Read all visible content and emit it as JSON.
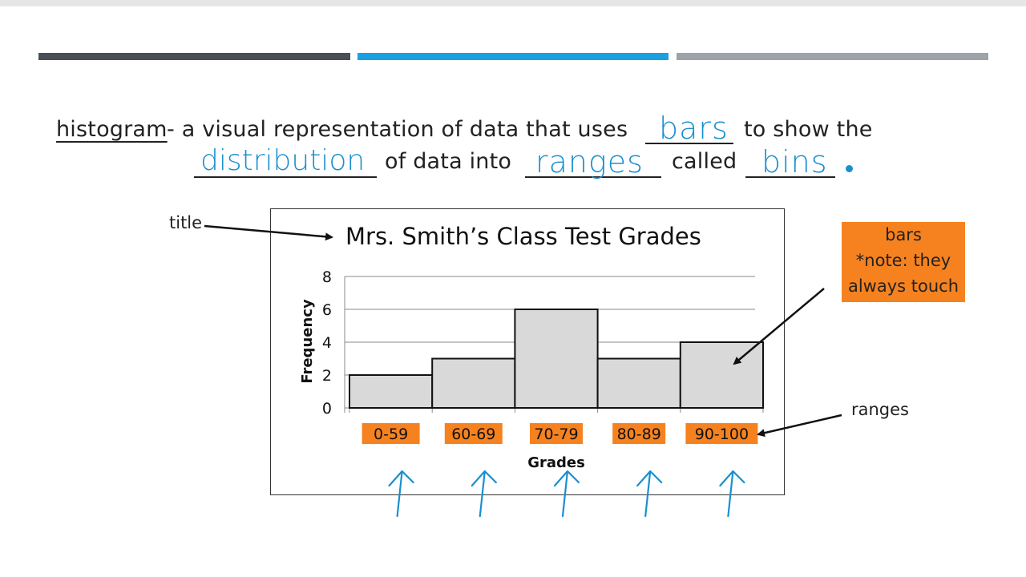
{
  "definition": {
    "term": "histogram",
    "line1_text": "- a visual representation of data that uses",
    "line1_after": "to show the",
    "line2_mid": "of data into",
    "line2_after": "called",
    "answers": {
      "bars": "bars",
      "distribution": "distribution",
      "ranges": "ranges",
      "bins": "bins"
    }
  },
  "annotations": {
    "title_label": "title",
    "ranges_label": "ranges",
    "bars_note": [
      "bars",
      "*note: they",
      "always touch"
    ]
  },
  "colors": {
    "stripe_dark": "#4a4e57",
    "stripe_blue": "#1ba1e2",
    "stripe_gray": "#9ea3aa",
    "highlight": "#f6821f",
    "ink_blue": "#1a8fd0",
    "bar_fill": "#d9d9d9"
  },
  "chart_data": {
    "type": "bar",
    "title": "Mrs. Smith’s Class Test Grades",
    "xlabel": "Grades",
    "ylabel": "Frequency",
    "categories": [
      "0-59",
      "60-69",
      "70-79",
      "80-89",
      "90-100"
    ],
    "values": [
      2,
      3,
      6,
      3,
      4
    ],
    "ylim": [
      0,
      8
    ],
    "yticks": [
      0,
      2,
      4,
      6,
      8
    ],
    "grid": true,
    "bars_touch": true
  }
}
